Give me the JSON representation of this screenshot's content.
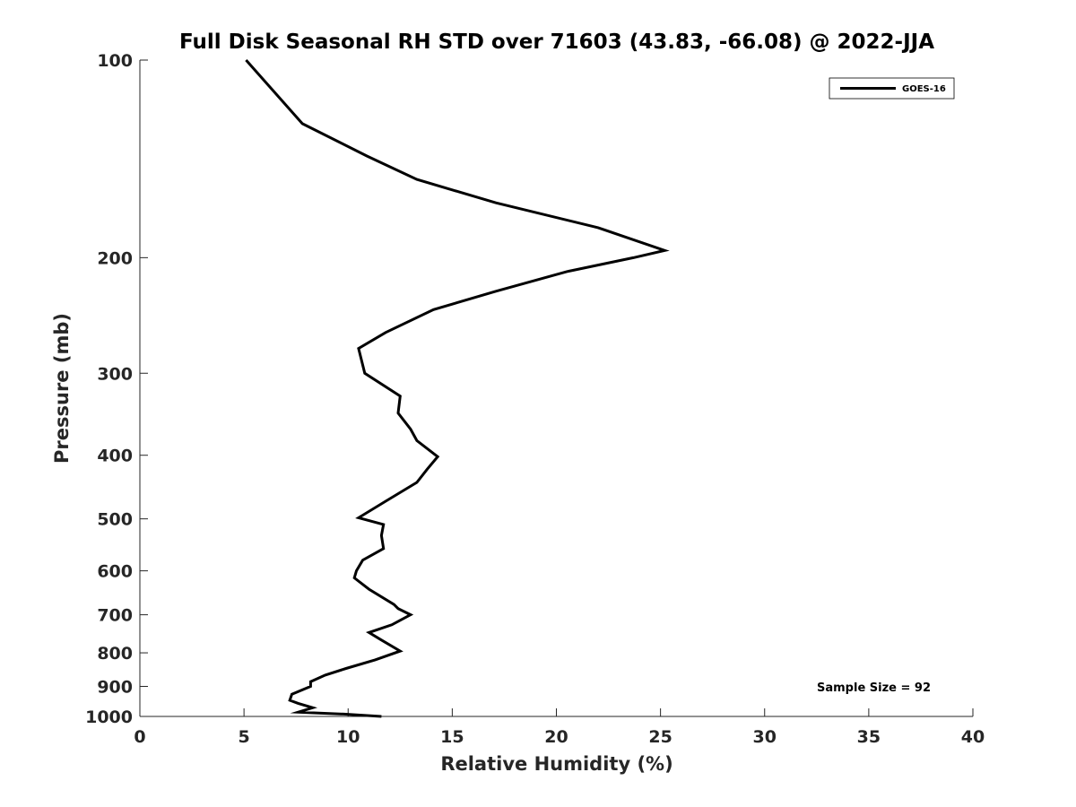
{
  "chart_data": {
    "type": "line",
    "title": "Full Disk Seasonal RH STD over 71603 (43.83, -66.08) @ 2022-JJA",
    "xlabel": "Relative Humidity (%)",
    "ylabel": "Pressure (mb)",
    "xlim": [
      0,
      40
    ],
    "ylim": [
      1000,
      100
    ],
    "y_scale": "log",
    "grid": false,
    "legend_position": "top-right",
    "x_ticks": [
      0,
      5,
      10,
      15,
      20,
      25,
      30,
      35,
      40
    ],
    "y_ticks": [
      100,
      200,
      300,
      400,
      500,
      600,
      700,
      800,
      900,
      1000
    ],
    "annotation": "Sample Size = 92",
    "series": [
      {
        "name": "GOES-16",
        "color": "#000000",
        "points": [
          [
            5.1,
            100
          ],
          [
            7.8,
            125
          ],
          [
            10.9,
            140
          ],
          [
            13.3,
            152
          ],
          [
            17.1,
            165
          ],
          [
            22.0,
            180
          ],
          [
            25.2,
            195
          ],
          [
            23.7,
            200
          ],
          [
            20.5,
            210
          ],
          [
            17.1,
            225
          ],
          [
            14.1,
            240
          ],
          [
            11.8,
            260
          ],
          [
            10.5,
            275
          ],
          [
            10.8,
            300
          ],
          [
            12.5,
            325
          ],
          [
            12.4,
            345
          ],
          [
            13.0,
            365
          ],
          [
            13.3,
            380
          ],
          [
            14.3,
            402
          ],
          [
            13.8,
            420
          ],
          [
            13.3,
            440
          ],
          [
            11.8,
            470
          ],
          [
            10.5,
            498
          ],
          [
            11.7,
            510
          ],
          [
            11.6,
            530
          ],
          [
            11.7,
            555
          ],
          [
            10.7,
            578
          ],
          [
            10.4,
            600
          ],
          [
            10.3,
            615
          ],
          [
            11.0,
            640
          ],
          [
            12.2,
            675
          ],
          [
            12.4,
            685
          ],
          [
            13.0,
            700
          ],
          [
            12.1,
            725
          ],
          [
            11.0,
            745
          ],
          [
            11.6,
            765
          ],
          [
            12.5,
            795
          ],
          [
            11.3,
            820
          ],
          [
            9.9,
            845
          ],
          [
            8.9,
            865
          ],
          [
            8.2,
            885
          ],
          [
            8.2,
            900
          ],
          [
            7.3,
            925
          ],
          [
            7.2,
            945
          ],
          [
            7.6,
            955
          ],
          [
            8.3,
            970
          ],
          [
            7.6,
            985
          ],
          [
            9.8,
            992
          ],
          [
            11.6,
            1000
          ]
        ]
      }
    ]
  }
}
